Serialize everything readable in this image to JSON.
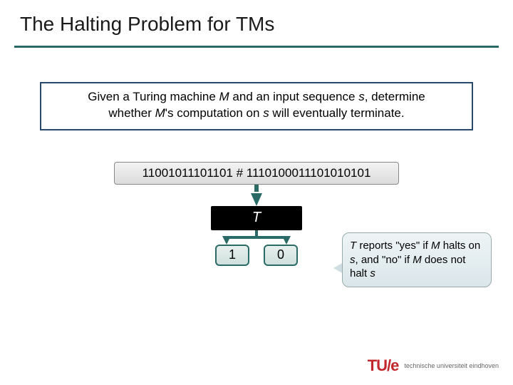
{
  "title": "The Halting Problem for TMs",
  "problem": {
    "pre1": "Given a Turing machine ",
    "M1": "M",
    "mid1": " and an input sequence ",
    "s1": "s",
    "post1": ", determine",
    "pre2": "whether ",
    "M2": "M",
    "mid2": "'s computation on ",
    "s2": "s",
    "post2": " will eventually terminate."
  },
  "tape": "11001011101101 # 1110100011101010101",
  "machine": "T",
  "outputs": {
    "yes": "1",
    "no": "0"
  },
  "callout": {
    "T1": "T",
    "t1": " reports \"yes\" if ",
    "M1": "M",
    "t2": " halts on ",
    "s1": "s",
    "t3": ", and \"no\" if ",
    "M2": "M",
    "t4": " does not halt ",
    "s2": "s"
  },
  "footer": {
    "logo": "TU/e",
    "org": "technische universiteit eindhoven"
  },
  "colors": {
    "accent": "#2a6b67",
    "boxBorder": "#2a4a6b",
    "logo": "#c1272d"
  }
}
